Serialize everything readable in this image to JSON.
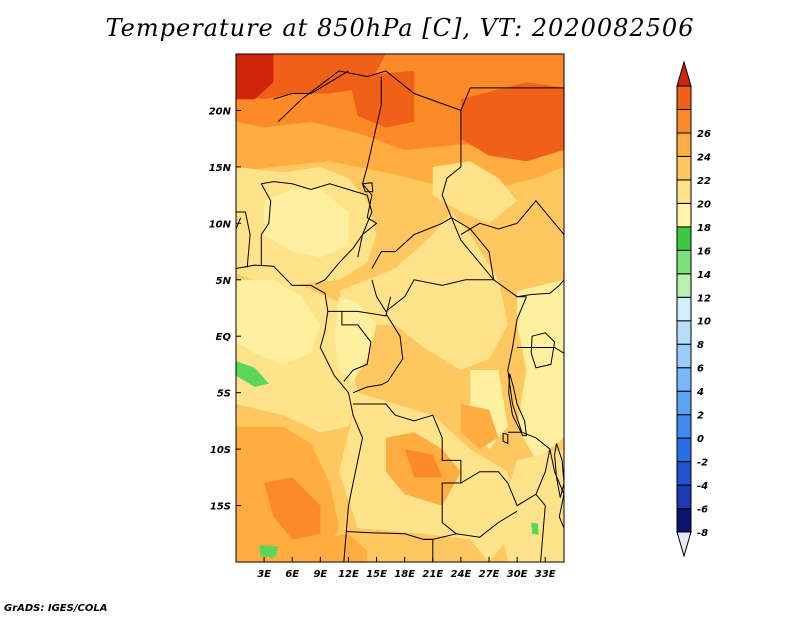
{
  "title": "Temperature at 850hPa [C], VT: 2020082506",
  "credit": "GrADS: IGES/COLA",
  "map": {
    "lon_range": [
      0,
      35
    ],
    "lat_range": [
      -20,
      25
    ],
    "lon_ticks": [
      {
        "value": 3,
        "label": "3E"
      },
      {
        "value": 6,
        "label": "6E"
      },
      {
        "value": 9,
        "label": "9E"
      },
      {
        "value": 12,
        "label": "12E"
      },
      {
        "value": 15,
        "label": "15E"
      },
      {
        "value": 18,
        "label": "18E"
      },
      {
        "value": 21,
        "label": "21E"
      },
      {
        "value": 24,
        "label": "24E"
      },
      {
        "value": 27,
        "label": "27E"
      },
      {
        "value": 30,
        "label": "30E"
      },
      {
        "value": 33,
        "label": "33E"
      }
    ],
    "lat_ticks": [
      {
        "value": 20,
        "label": "20N"
      },
      {
        "value": 15,
        "label": "15N"
      },
      {
        "value": 10,
        "label": "10N"
      },
      {
        "value": 5,
        "label": "5N"
      },
      {
        "value": 0,
        "label": "EQ"
      },
      {
        "value": -5,
        "label": "5S"
      },
      {
        "value": -10,
        "label": "10S"
      },
      {
        "value": -15,
        "label": "15S"
      }
    ],
    "palette": {
      "t14": "#fff0a0",
      "t16": "#ffe38a",
      "t18": "#ffc760",
      "t20": "#ffac40",
      "t22": "#fc8a26",
      "t24": "#f06018",
      "t26": "#d02408",
      "t10": "#9ae88a",
      "t12": "#5ad65a",
      "t13": "#2eb32e"
    }
  },
  "colorbar": {
    "colors": [
      "#e8e8f8",
      "#0a146e",
      "#1c3ab4",
      "#2152d4",
      "#2a6ee6",
      "#3e8aee",
      "#5aa2f4",
      "#78b8f8",
      "#98ccfa",
      "#b6def8",
      "#d2eefa",
      "#b8f0b0",
      "#7ce07a",
      "#3ec83e",
      "#fff4aa",
      "#ffe38a",
      "#ffc760",
      "#ffac40",
      "#fc8a26",
      "#f06018",
      "#d02408"
    ],
    "labels": [
      "-8",
      "-6",
      "-4",
      "-2",
      "0",
      "2",
      "4",
      "6",
      "8",
      "10",
      "12",
      "14",
      "16",
      "18",
      "20",
      "22",
      "24",
      "26"
    ]
  }
}
